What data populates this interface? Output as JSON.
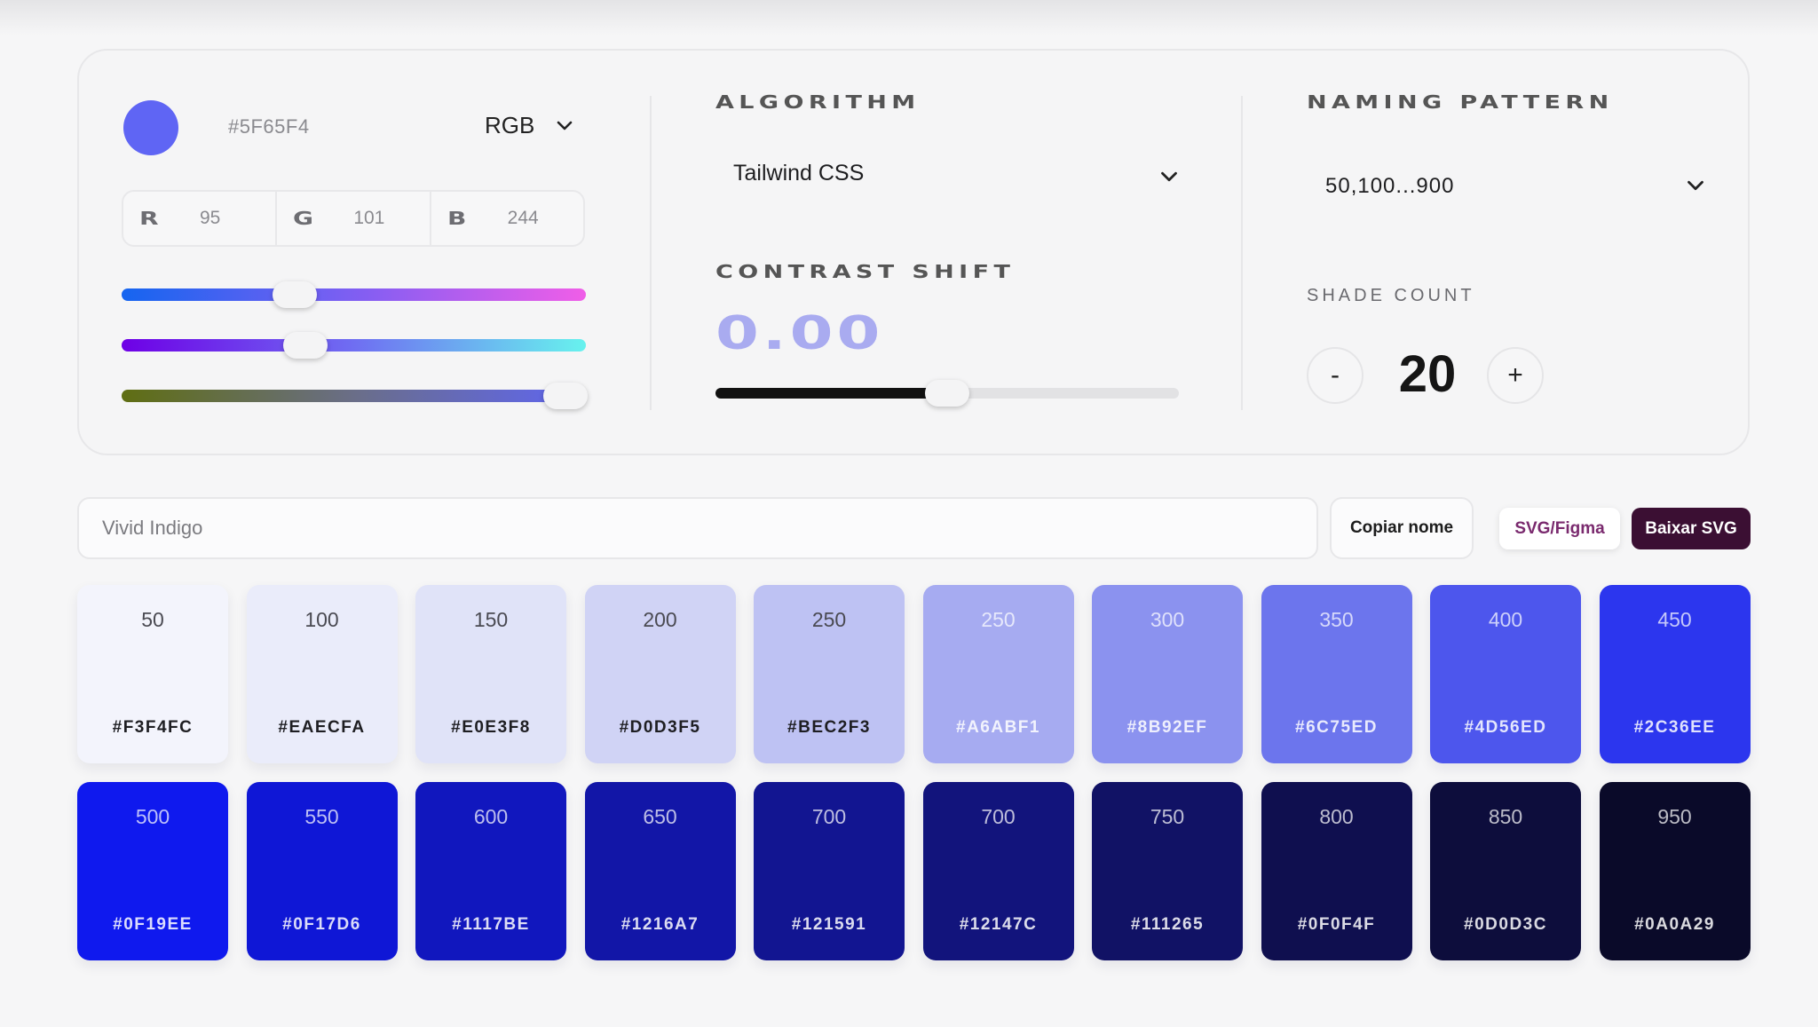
{
  "base_color": {
    "hex": "#5F65F4",
    "mode": "RGB",
    "channels": [
      {
        "letter": "R",
        "value": "95"
      },
      {
        "letter": "G",
        "value": "101"
      },
      {
        "letter": "B",
        "value": "244"
      }
    ],
    "channel_fractions": [
      0.3725,
      0.3961,
      0.9569
    ]
  },
  "algorithm": {
    "label": "ALGORITHM",
    "selected": "Tailwind CSS"
  },
  "contrast": {
    "label": "CONTRAST SHIFT",
    "value": "0.00",
    "slider_fraction": 0.5
  },
  "naming": {
    "label": "NAMING PATTERN",
    "selected": "50,100...900"
  },
  "shade_count": {
    "label": "SHADE COUNT",
    "minus": "-",
    "plus": "+",
    "value": "20"
  },
  "name_bar": {
    "value": "Vivid Indigo",
    "copy_label": "Copiar nome",
    "svg_figma_label": "SVG/Figma",
    "download_label": "Baixar SVG"
  },
  "colors": {
    "accent": "#5F65F4",
    "download_bg": "#3B0F33",
    "svg_figma_text": "#7A2A6E"
  },
  "palette": [
    {
      "shade": "50",
      "hex": "#F3F4FC",
      "dark_text": true
    },
    {
      "shade": "100",
      "hex": "#EAECFA",
      "dark_text": true
    },
    {
      "shade": "150",
      "hex": "#E0E3F8",
      "dark_text": true
    },
    {
      "shade": "200",
      "hex": "#D0D3F5",
      "dark_text": true
    },
    {
      "shade": "250",
      "hex": "#BEC2F3",
      "dark_text": true
    },
    {
      "shade": "250",
      "hex": "#A6ABF1",
      "dark_text": false
    },
    {
      "shade": "300",
      "hex": "#8B92EF",
      "dark_text": false
    },
    {
      "shade": "350",
      "hex": "#6C75ED",
      "dark_text": false
    },
    {
      "shade": "400",
      "hex": "#4D56ED",
      "dark_text": false
    },
    {
      "shade": "450",
      "hex": "#2C36EE",
      "dark_text": false
    },
    {
      "shade": "500",
      "hex": "#0F19EE",
      "dark_text": false
    },
    {
      "shade": "550",
      "hex": "#0F17D6",
      "dark_text": false
    },
    {
      "shade": "600",
      "hex": "#1117BE",
      "dark_text": false
    },
    {
      "shade": "650",
      "hex": "#1216A7",
      "dark_text": false
    },
    {
      "shade": "700",
      "hex": "#121591",
      "dark_text": false
    },
    {
      "shade": "700",
      "hex": "#12147C",
      "dark_text": false
    },
    {
      "shade": "750",
      "hex": "#111265",
      "dark_text": false
    },
    {
      "shade": "800",
      "hex": "#0F0F4F",
      "dark_text": false
    },
    {
      "shade": "850",
      "hex": "#0D0D3C",
      "dark_text": false
    },
    {
      "shade": "950",
      "hex": "#0A0A29",
      "dark_text": false
    }
  ]
}
